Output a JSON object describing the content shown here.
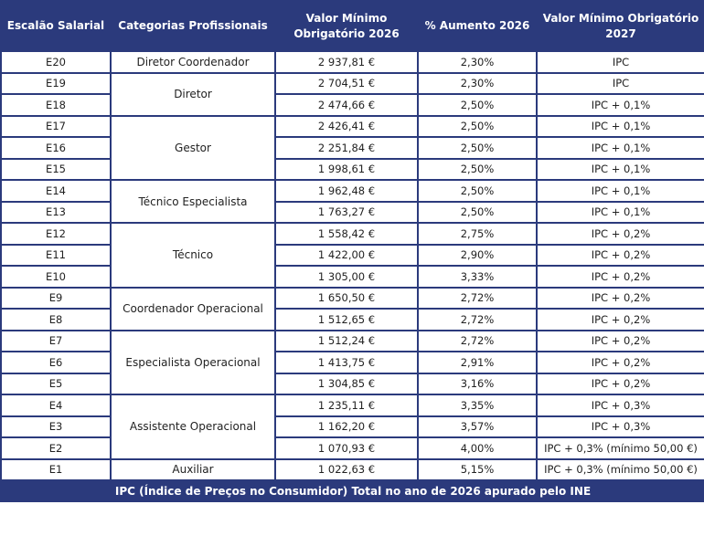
{
  "header": {
    "col1": "Escalão Salarial",
    "col2": "Categorias Profissionais",
    "col3": "Valor Mínimo Obrigatório 2026",
    "col4": "% Aumento 2026",
    "col5": "Valor Mínimo Obrigatório 2027"
  },
  "categories": [
    {
      "label": "Diretor Coordenador",
      "span": 1
    },
    {
      "label": "Diretor",
      "span": 2
    },
    {
      "label": "Gestor",
      "span": 3
    },
    {
      "label": "Técnico Especialista",
      "span": 2
    },
    {
      "label": "Técnico",
      "span": 3
    },
    {
      "label": "Coordenador Operacional",
      "span": 2
    },
    {
      "label": "Especialista Operacional",
      "span": 3
    },
    {
      "label": "Assistente Operacional",
      "span": 3
    },
    {
      "label": "Auxiliar",
      "span": 1
    }
  ],
  "rows": [
    {
      "escalao": "E20",
      "valor2026": "2 937,81 €",
      "aumento": "2,30%",
      "valor2027": "IPC"
    },
    {
      "escalao": "E19",
      "valor2026": "2 704,51 €",
      "aumento": "2,30%",
      "valor2027": "IPC"
    },
    {
      "escalao": "E18",
      "valor2026": "2 474,66 €",
      "aumento": "2,50%",
      "valor2027": "IPC + 0,1%"
    },
    {
      "escalao": "E17",
      "valor2026": "2 426,41 €",
      "aumento": "2,50%",
      "valor2027": "IPC + 0,1%"
    },
    {
      "escalao": "E16",
      "valor2026": "2 251,84 €",
      "aumento": "2,50%",
      "valor2027": "IPC + 0,1%"
    },
    {
      "escalao": "E15",
      "valor2026": "1 998,61 €",
      "aumento": "2,50%",
      "valor2027": "IPC + 0,1%"
    },
    {
      "escalao": "E14",
      "valor2026": "1 962,48 €",
      "aumento": "2,50%",
      "valor2027": "IPC + 0,1%"
    },
    {
      "escalao": "E13",
      "valor2026": "1 763,27 €",
      "aumento": "2,50%",
      "valor2027": "IPC + 0,1%"
    },
    {
      "escalao": "E12",
      "valor2026": "1 558,42 €",
      "aumento": "2,75%",
      "valor2027": "IPC + 0,2%"
    },
    {
      "escalao": "E11",
      "valor2026": "1 422,00 €",
      "aumento": "2,90%",
      "valor2027": "IPC + 0,2%"
    },
    {
      "escalao": "E10",
      "valor2026": "1 305,00 €",
      "aumento": "3,33%",
      "valor2027": "IPC + 0,2%"
    },
    {
      "escalao": "E9",
      "valor2026": "1 650,50 €",
      "aumento": "2,72%",
      "valor2027": "IPC + 0,2%"
    },
    {
      "escalao": "E8",
      "valor2026": "1 512,65 €",
      "aumento": "2,72%",
      "valor2027": "IPC + 0,2%"
    },
    {
      "escalao": "E7",
      "valor2026": "1 512,24 €",
      "aumento": "2,72%",
      "valor2027": "IPC + 0,2%"
    },
    {
      "escalao": "E6",
      "valor2026": "1 413,75 €",
      "aumento": "2,91%",
      "valor2027": "IPC + 0,2%"
    },
    {
      "escalao": "E5",
      "valor2026": "1 304,85 €",
      "aumento": "3,16%",
      "valor2027": "IPC + 0,2%"
    },
    {
      "escalao": "E4",
      "valor2026": "1 235,11 €",
      "aumento": "3,35%",
      "valor2027": "IPC + 0,3%"
    },
    {
      "escalao": "E3",
      "valor2026": "1 162,20 €",
      "aumento": "3,57%",
      "valor2027": "IPC + 0,3%"
    },
    {
      "escalao": "E2",
      "valor2026": "1 070,93 €",
      "aumento": "4,00%",
      "valor2027": "IPC + 0,3% (mínimo 50,00 €)"
    },
    {
      "escalao": "E1",
      "valor2026": "1 022,63 €",
      "aumento": "5,15%",
      "valor2027": "IPC + 0,3% (mínimo 50,00 €)"
    }
  ],
  "footer": "IPC (Índice de Preços no Consumidor) Total no ano de 2026 apurado pelo INE",
  "colors": {
    "header_bg": "#2b3a7c",
    "border": "#2b3a7c",
    "text": "#222222"
  }
}
